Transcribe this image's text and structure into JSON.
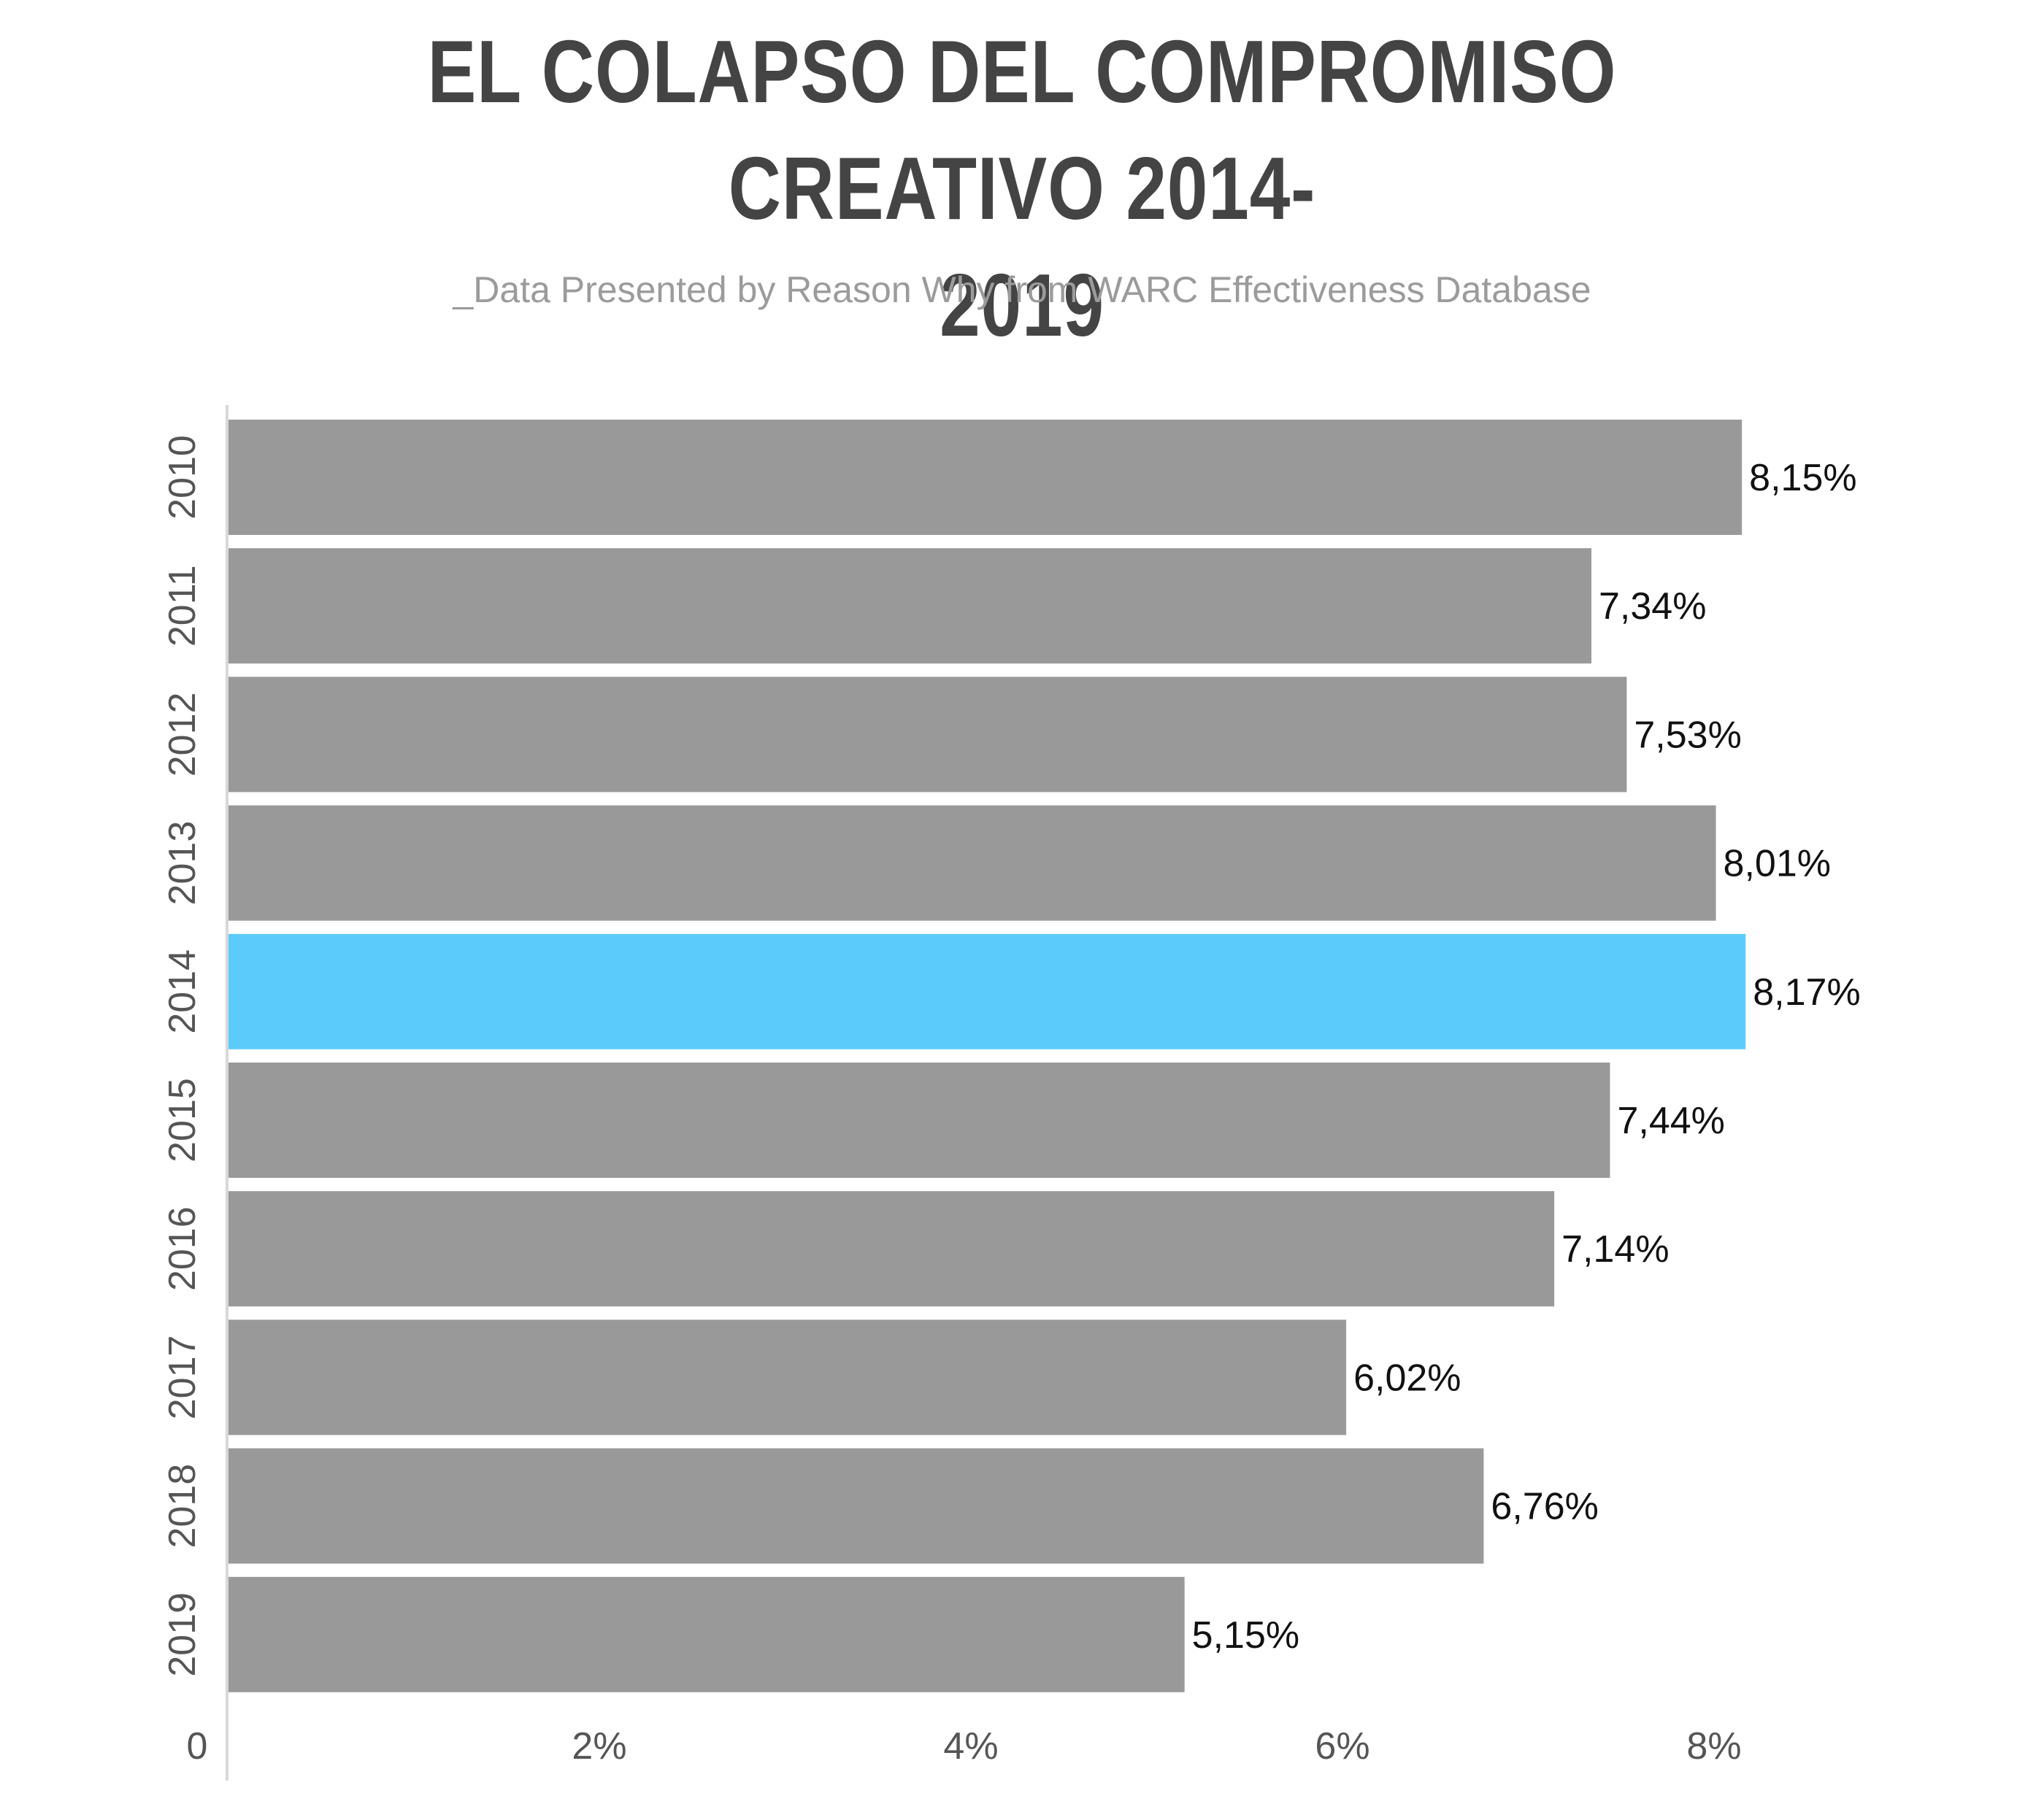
{
  "title": "EL COLAPSO DEL COMPROMISO CREATIVO 2014-2019",
  "subtitle": "_Data Presented by Reason Why from WARC Effectiveness Database",
  "colors": {
    "bar": "#999999",
    "highlight": "#5bcbfc",
    "axis": "#d8d8d8",
    "tick_text": "#555555",
    "value_text": "#111111"
  },
  "chart_data": {
    "type": "bar",
    "orientation": "horizontal",
    "categories": [
      "2010",
      "2011",
      "2012",
      "2013",
      "2014",
      "2015",
      "2016",
      "2017",
      "2018",
      "2019"
    ],
    "values": [
      8.15,
      7.34,
      7.53,
      8.01,
      8.17,
      7.44,
      7.14,
      6.02,
      6.76,
      5.15
    ],
    "value_labels": [
      "8,15%",
      "7,34%",
      "7,53%",
      "8,01%",
      "8,17%",
      "7,44%",
      "7,14%",
      "6,02%",
      "6,76%",
      "5,15%"
    ],
    "highlight_category": "2014",
    "x_ticks": [
      0,
      2,
      4,
      6,
      8
    ],
    "x_tick_labels": [
      "0",
      "2%",
      "4%",
      "6%",
      "8%"
    ],
    "xlim": [
      0,
      9.2
    ],
    "xlabel": "",
    "ylabel": "",
    "grid": false,
    "legend": "none"
  }
}
